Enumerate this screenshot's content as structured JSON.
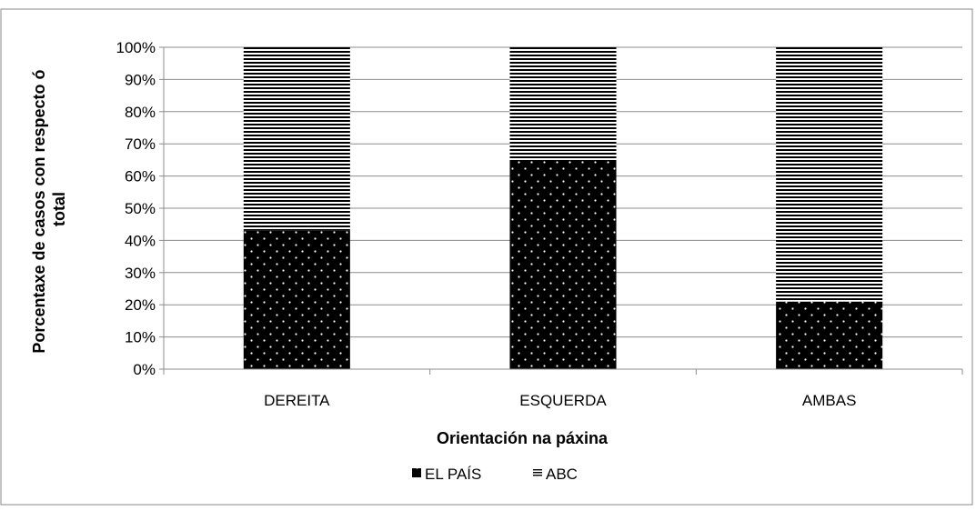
{
  "chart_data": {
    "type": "bar",
    "stacked": true,
    "percent_stacked": true,
    "categories": [
      "DEREITA",
      "ESQUERDA",
      "AMBAS"
    ],
    "series": [
      {
        "name": "EL PAÍS",
        "values": [
          43,
          65,
          21
        ],
        "pattern": "dotted",
        "color": "#000000"
      },
      {
        "name": "ABC",
        "values": [
          57,
          35,
          79
        ],
        "pattern": "horizontal-stripes",
        "color": "#000000"
      }
    ],
    "title": "",
    "xlabel": "Orientación na páxina",
    "ylabel_lines": [
      "Porcentaxe de casos con respecto ó",
      "total"
    ],
    "ylim": [
      0,
      100
    ],
    "yticks": [
      0,
      10,
      20,
      30,
      40,
      50,
      60,
      70,
      80,
      90,
      100
    ],
    "ytick_suffix": "%",
    "grid": true,
    "legend_position": "bottom"
  }
}
